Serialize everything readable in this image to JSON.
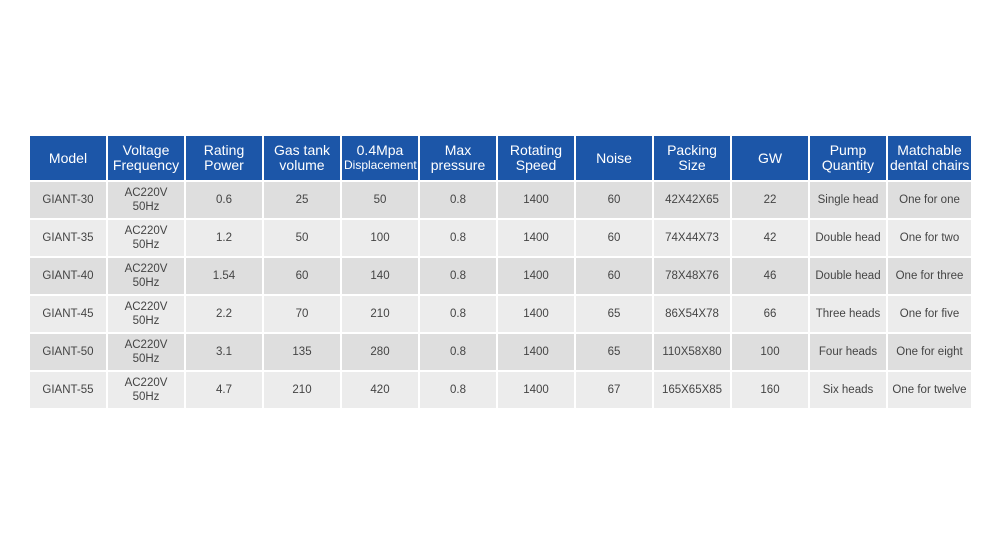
{
  "table": {
    "headers": [
      [
        "Model"
      ],
      [
        "Voltage",
        "Frequency"
      ],
      [
        "Rating",
        "Power"
      ],
      [
        "Gas tank",
        "volume"
      ],
      [
        "0.4Mpa",
        "Displacement"
      ],
      [
        "Max",
        "pressure"
      ],
      [
        "Rotating",
        "Speed"
      ],
      [
        "Noise"
      ],
      [
        "Packing",
        "Size"
      ],
      [
        "GW"
      ],
      [
        "Pump",
        "Quantity"
      ],
      [
        "Matchable",
        "dental chairs"
      ]
    ],
    "rows": [
      [
        "GIANT-30",
        [
          "AC220V",
          "50Hz"
        ],
        "0.6",
        "25",
        "50",
        "0.8",
        "1400",
        "60",
        "42X42X65",
        "22",
        "Single head",
        "One for one"
      ],
      [
        "GIANT-35",
        [
          "AC220V",
          "50Hz"
        ],
        "1.2",
        "50",
        "100",
        "0.8",
        "1400",
        "60",
        "74X44X73",
        "42",
        "Double head",
        "One for two"
      ],
      [
        "GIANT-40",
        [
          "AC220V",
          "50Hz"
        ],
        "1.54",
        "60",
        "140",
        "0.8",
        "1400",
        "60",
        "78X48X76",
        "46",
        "Double head",
        "One for three"
      ],
      [
        "GIANT-45",
        [
          "AC220V",
          "50Hz"
        ],
        "2.2",
        "70",
        "210",
        "0.8",
        "1400",
        "65",
        "86X54X78",
        "66",
        "Three heads",
        "One for five"
      ],
      [
        "GIANT-50",
        [
          "AC220V",
          "50Hz"
        ],
        "3.1",
        "135",
        "280",
        "0.8",
        "1400",
        "65",
        "110X58X80",
        "100",
        "Four heads",
        "One for eight"
      ],
      [
        "GIANT-55",
        [
          "AC220V",
          "50Hz"
        ],
        "4.7",
        "210",
        "420",
        "0.8",
        "1400",
        "67",
        "165X65X85",
        "160",
        "Six heads",
        "One for twelve"
      ]
    ]
  },
  "colors": {
    "header_bg": "#1c56a8",
    "header_text": "#ffffff",
    "row_odd_bg": "#dedede",
    "row_even_bg": "#ececec",
    "cell_text": "#444444"
  }
}
